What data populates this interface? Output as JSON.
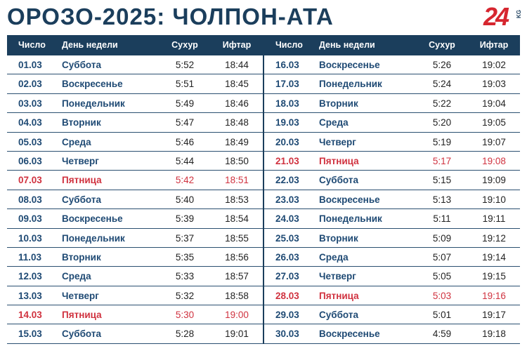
{
  "title": "ОРОЗО-2025: ЧОЛПОН-АТА",
  "logo": {
    "number": "24",
    "suffix": "KG"
  },
  "headers": {
    "date": "Число",
    "day": "День недели",
    "suhur": "Сухур",
    "iftar": "Ифтар"
  },
  "colors": {
    "header_bg": "#1b3e5c",
    "text_blue": "#1f4a74",
    "friday_red": "#d0323f"
  },
  "left": [
    {
      "date": "01.03",
      "day": "Суббота",
      "suhur": "5:52",
      "iftar": "18:44",
      "friday": false
    },
    {
      "date": "02.03",
      "day": "Воскресенье",
      "suhur": "5:51",
      "iftar": "18:45",
      "friday": false
    },
    {
      "date": "03.03",
      "day": "Понедельник",
      "suhur": "5:49",
      "iftar": "18:46",
      "friday": false
    },
    {
      "date": "04.03",
      "day": "Вторник",
      "suhur": "5:47",
      "iftar": "18:48",
      "friday": false
    },
    {
      "date": "05.03",
      "day": "Среда",
      "suhur": "5:46",
      "iftar": "18:49",
      "friday": false
    },
    {
      "date": "06.03",
      "day": "Четверг",
      "suhur": "5:44",
      "iftar": "18:50",
      "friday": false
    },
    {
      "date": "07.03",
      "day": "Пятница",
      "suhur": "5:42",
      "iftar": "18:51",
      "friday": true
    },
    {
      "date": "08.03",
      "day": "Суббота",
      "suhur": "5:40",
      "iftar": "18:53",
      "friday": false
    },
    {
      "date": "09.03",
      "day": "Воскресенье",
      "suhur": "5:39",
      "iftar": "18:54",
      "friday": false
    },
    {
      "date": "10.03",
      "day": "Понедельник",
      "suhur": "5:37",
      "iftar": "18:55",
      "friday": false
    },
    {
      "date": "11.03",
      "day": "Вторник",
      "suhur": "5:35",
      "iftar": "18:56",
      "friday": false
    },
    {
      "date": "12.03",
      "day": "Среда",
      "suhur": "5:33",
      "iftar": "18:57",
      "friday": false
    },
    {
      "date": "13.03",
      "day": "Четверг",
      "suhur": "5:32",
      "iftar": "18:58",
      "friday": false
    },
    {
      "date": "14.03",
      "day": "Пятница",
      "suhur": "5:30",
      "iftar": "19:00",
      "friday": true
    },
    {
      "date": "15.03",
      "day": "Суббота",
      "suhur": "5:28",
      "iftar": "19:01",
      "friday": false
    }
  ],
  "right": [
    {
      "date": "16.03",
      "day": "Воскресенье",
      "suhur": "5:26",
      "iftar": "19:02",
      "friday": false
    },
    {
      "date": "17.03",
      "day": "Понедельник",
      "suhur": "5:24",
      "iftar": "19:03",
      "friday": false
    },
    {
      "date": "18.03",
      "day": "Вторник",
      "suhur": "5:22",
      "iftar": "19:04",
      "friday": false
    },
    {
      "date": "19.03",
      "day": "Среда",
      "suhur": "5:20",
      "iftar": "19:05",
      "friday": false
    },
    {
      "date": "20.03",
      "day": "Четверг",
      "suhur": "5:19",
      "iftar": "19:07",
      "friday": false
    },
    {
      "date": "21.03",
      "day": "Пятница",
      "suhur": "5:17",
      "iftar": "19:08",
      "friday": true
    },
    {
      "date": "22.03",
      "day": "Суббота",
      "suhur": "5:15",
      "iftar": "19:09",
      "friday": false
    },
    {
      "date": "23.03",
      "day": "Воскресенье",
      "suhur": "5:13",
      "iftar": "19:10",
      "friday": false
    },
    {
      "date": "24.03",
      "day": "Понедельник",
      "suhur": "5:11",
      "iftar": "19:11",
      "friday": false
    },
    {
      "date": "25.03",
      "day": "Вторник",
      "suhur": "5:09",
      "iftar": "19:12",
      "friday": false
    },
    {
      "date": "26.03",
      "day": "Среда",
      "suhur": "5:07",
      "iftar": "19:14",
      "friday": false
    },
    {
      "date": "27.03",
      "day": "Четверг",
      "suhur": "5:05",
      "iftar": "19:15",
      "friday": false
    },
    {
      "date": "28.03",
      "day": "Пятница",
      "suhur": "5:03",
      "iftar": "19:16",
      "friday": true
    },
    {
      "date": "29.03",
      "day": "Суббота",
      "suhur": "5:01",
      "iftar": "19:17",
      "friday": false
    },
    {
      "date": "30.03",
      "day": "Воскресенье",
      "suhur": "4:59",
      "iftar": "19:18",
      "friday": false
    }
  ]
}
